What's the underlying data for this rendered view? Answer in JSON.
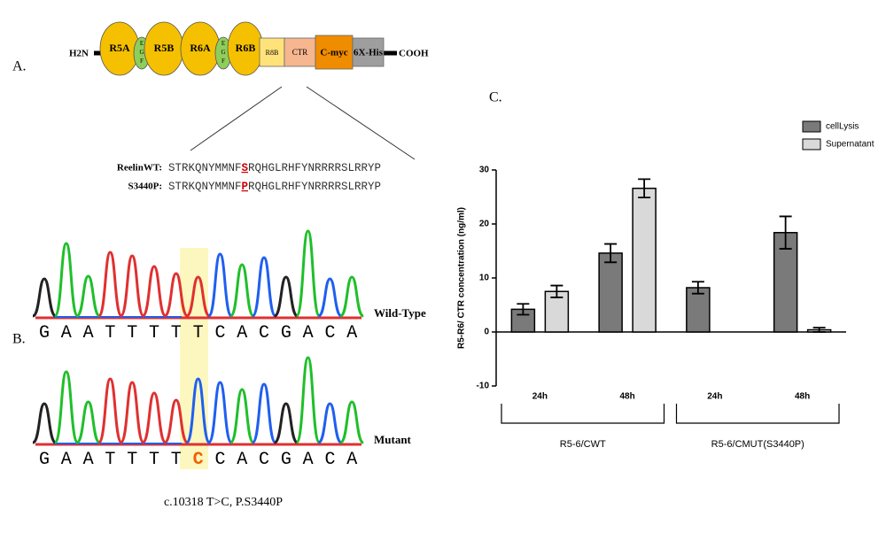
{
  "panel_a": {
    "label": "A.",
    "n_terminus": "H2N",
    "c_terminus": "COOH",
    "domains": [
      "R5A",
      "EGF",
      "R5B",
      "R6A",
      "EGF",
      "R6B",
      "R8B",
      "CTR",
      "C-myc",
      "6X-His"
    ],
    "sequences": [
      {
        "name": "ReelinWT:",
        "before": "STRKQNYMMNF",
        "site": "S",
        "after": "RQHGLRHFYNRRRRSLRRYP"
      },
      {
        "name": "S3440P:",
        "before": "STRKQNYMMNF",
        "site": "P",
        "after": "RQHGLRHFYNRRRRSLRRYP"
      }
    ]
  },
  "panel_b": {
    "label": "B.",
    "traces": [
      {
        "name": "Wild-Type",
        "before": "GAATTTT",
        "site": "T",
        "after": "CACGACA"
      },
      {
        "name": "Mutant",
        "before": "GAATTTT",
        "site": "C",
        "after": "CACGACA"
      }
    ],
    "caption": "c.10318 T>C, P.S3440P"
  },
  "chart_data": {
    "type": "bar",
    "label": "C.",
    "y_label": "R5-R6/ CTR concentration (ng/ml)",
    "categories": [
      "24h",
      "48h",
      "24h",
      "48h"
    ],
    "groups": [
      "R5-6/CWT",
      "R5-6/CMUT(S3440P)"
    ],
    "series": [
      {
        "name": "cellLysis",
        "color": "#7a7a7a",
        "values": [
          4.2,
          14.6,
          8.2,
          18.4
        ],
        "errors": [
          1.0,
          1.7,
          1.1,
          3.0
        ]
      },
      {
        "name": "Supernatant",
        "color": "#d9d9d9",
        "values": [
          7.5,
          26.6,
          null,
          0.4
        ],
        "errors": [
          1.1,
          1.7,
          null,
          0.4
        ]
      }
    ],
    "ylim": [
      -10,
      30
    ],
    "yticks": [
      -10,
      0,
      10,
      20,
      30
    ],
    "grid": false,
    "legend": "top-right"
  }
}
